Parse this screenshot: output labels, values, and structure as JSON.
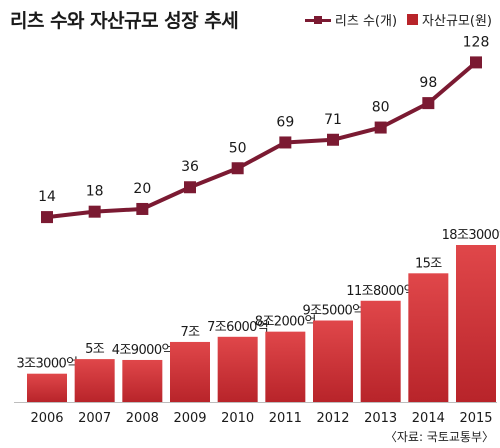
{
  "header": {
    "title": "리츠 수와 자산규모 성장 추세",
    "legend_line_label": "리츠 수(개)",
    "legend_bar_label": "자산규모(원)"
  },
  "footer": {
    "source": "〈자료: 국토교통부〉"
  },
  "colors": {
    "line": "#7b1a32",
    "bar_top": "#e0474a",
    "bar_bottom": "#b8242a",
    "text": "#1a1a1a"
  },
  "chart_data": {
    "type": "bar",
    "title": "리츠 수와 자산규모 성장 추세",
    "categories": [
      "2006",
      "2007",
      "2008",
      "2009",
      "2010",
      "2011",
      "2012",
      "2013",
      "2014",
      "2015"
    ],
    "series": [
      {
        "name": "자산규모(원)",
        "type": "bar",
        "values": [
          33000,
          50000,
          49000,
          70000,
          76000,
          82000,
          95000,
          118000,
          150000,
          183000
        ],
        "labels": [
          "3조3000억",
          "5조",
          "4조9000억",
          "7조",
          "7조6000억",
          "8조2000억",
          "9조5000억",
          "11조8000억",
          "15조",
          "18조3000억"
        ]
      },
      {
        "name": "리츠 수(개)",
        "type": "line",
        "values": [
          14,
          18,
          20,
          36,
          50,
          69,
          71,
          80,
          98,
          128
        ],
        "labels": [
          "14",
          "18",
          "20",
          "36",
          "50",
          "69",
          "71",
          "80",
          "98",
          "128"
        ]
      }
    ]
  }
}
